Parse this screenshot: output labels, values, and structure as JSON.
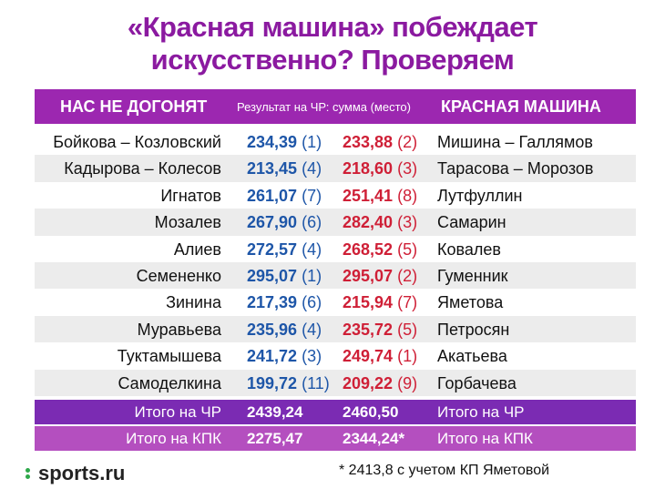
{
  "title": {
    "line1": "«Красная машина» побеждает",
    "line2": "искусственно? Проверяем"
  },
  "header": {
    "left": "НАС НЕ ДОГОНЯТ",
    "middle": "Результат на ЧР: сумма (место)",
    "right": "КРАСНАЯ МАШИНА"
  },
  "rows": [
    {
      "left": "Бойкова – Козловский",
      "blue": "234,39",
      "blue_place": "(1)",
      "red": "233,88",
      "red_place": "(2)",
      "right": "Мишина – Галлямов"
    },
    {
      "left": "Кадырова – Колесов",
      "blue": "213,45",
      "blue_place": "(4)",
      "red": "218,60",
      "red_place": "(3)",
      "right": "Тарасова – Морозов"
    },
    {
      "left": "Игнатов",
      "blue": "261,07",
      "blue_place": "(7)",
      "red": "251,41",
      "red_place": "(8)",
      "right": "Лутфуллин"
    },
    {
      "left": "Мозалев",
      "blue": "267,90",
      "blue_place": "(6)",
      "red": "282,40",
      "red_place": "(3)",
      "right": "Самарин"
    },
    {
      "left": "Алиев",
      "blue": "272,57",
      "blue_place": "(4)",
      "red": "268,52",
      "red_place": "(5)",
      "right": "Ковалев"
    },
    {
      "left": "Семененко",
      "blue": "295,07",
      "blue_place": "(1)",
      "red": "295,07",
      "red_place": "(2)",
      "right": "Гуменник"
    },
    {
      "left": "Зинина",
      "blue": "217,39",
      "blue_place": "(6)",
      "red": "215,94",
      "red_place": "(7)",
      "right": "Яметова"
    },
    {
      "left": "Муравьева",
      "blue": "235,96",
      "blue_place": "(4)",
      "red": "235,72",
      "red_place": "(5)",
      "right": "Петросян"
    },
    {
      "left": "Туктамышева",
      "blue": "241,72",
      "blue_place": "(3)",
      "red": "249,74",
      "red_place": "(1)",
      "right": "Акатьева"
    },
    {
      "left": "Самоделкина",
      "blue": "199,72",
      "blue_place": "(11)",
      "red": "209,22",
      "red_place": "(9)",
      "right": "Горбачева"
    }
  ],
  "totals": [
    {
      "left": "Итого на ЧР",
      "blue": "2439,24",
      "red": "2460,50",
      "right": "Итого на ЧР"
    },
    {
      "left": "Итого на КПК",
      "blue": "2275,47",
      "red": "2344,24*",
      "right": "Итого на КПК"
    }
  ],
  "logo": "sports.ru",
  "footnote": "* 2413,8 с учетом КП Яметовой",
  "colors": {
    "purple": "#9c27b0",
    "blue": "#1e56a8",
    "red": "#cf1f36",
    "logo_green": "#2ea84a"
  }
}
